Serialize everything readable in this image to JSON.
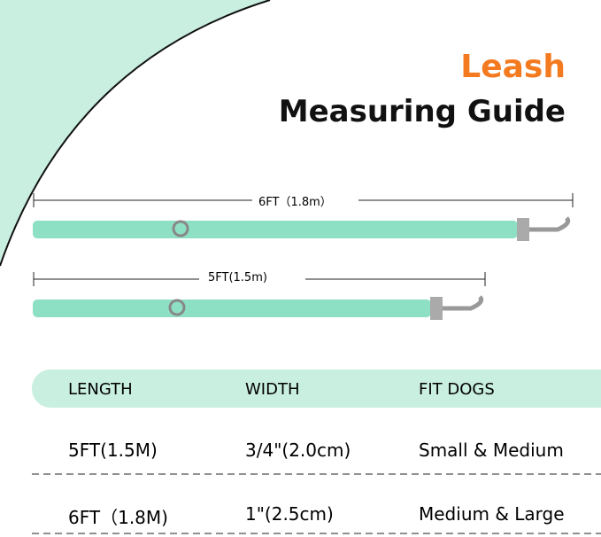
{
  "header": {
    "title_accent": "Leash",
    "title": "Measuring Guide"
  },
  "leashes": [
    {
      "label": "6FT（1.8m）"
    },
    {
      "label": "5FT(1.5m)"
    }
  ],
  "table": {
    "columns": [
      "LENGTH",
      "WIDTH",
      "FIT DOGS"
    ],
    "rows": [
      [
        "5FT(1.5M)",
        "3/4\"(2.0cm)",
        "Small & Medium"
      ],
      [
        "6FT（1.8M)",
        "1\"(2.5cm)",
        "Medium & Large"
      ]
    ]
  }
}
